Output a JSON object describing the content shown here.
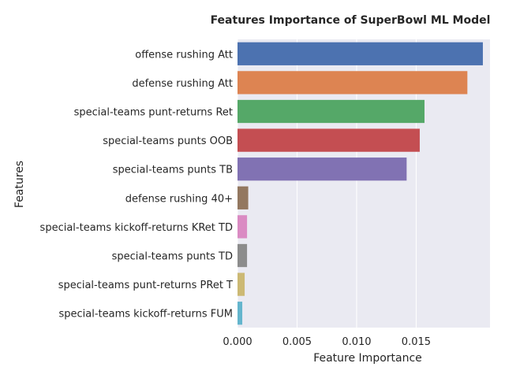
{
  "chart_data": {
    "type": "bar",
    "orientation": "horizontal",
    "title": "Features Importance of SuperBowl ML Model",
    "xlabel": "Feature Importance",
    "ylabel": "Features",
    "xlim": [
      0,
      0.0212
    ],
    "xticks": [
      "0.000",
      "0.005",
      "0.010",
      "0.015"
    ],
    "grid": true,
    "categories": [
      "offense rushing Att",
      "defense rushing Att",
      "special-teams punt-returns Ret",
      "special-teams punts OOB",
      "special-teams punts TB",
      "defense rushing 40+",
      "special-teams kickoff-returns KRet TD",
      "special-teams punts TD",
      "special-teams punt-returns PRet T",
      "special-teams kickoff-returns FUM"
    ],
    "values": [
      0.0206,
      0.0193,
      0.0157,
      0.0153,
      0.0142,
      0.0009,
      0.0008,
      0.0008,
      0.0006,
      0.0004
    ],
    "colors": [
      "#4c72b0",
      "#dd8452",
      "#55a868",
      "#c44e52",
      "#8172b3",
      "#937860",
      "#da8bc3",
      "#8c8c8c",
      "#ccb974",
      "#64b5cd"
    ],
    "background_color": "#eaeaf2",
    "grid_color": "#ffffff"
  }
}
